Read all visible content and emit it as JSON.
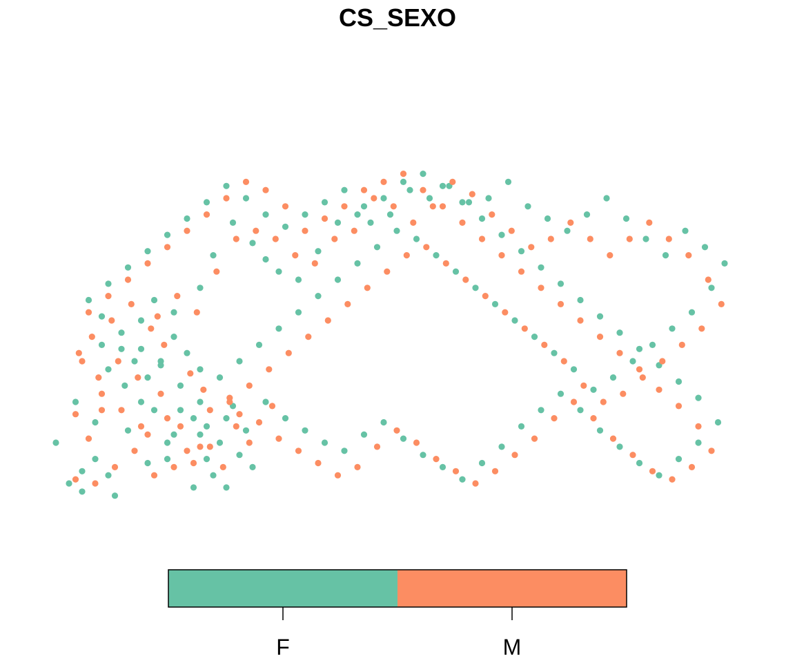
{
  "chart_data": {
    "type": "scatter",
    "title": "CS_SEXO",
    "xlabel": "",
    "ylabel": "",
    "grid": false,
    "legend": {
      "placement": "bottom",
      "style": "colorbar"
    },
    "categories": [
      "F",
      "M"
    ],
    "colors": {
      "F": "#66c2a5",
      "M": "#fc8d62"
    },
    "xlim": [
      0,
      1
    ],
    "ylim": [
      0,
      1
    ],
    "series": [
      {
        "name": "F",
        "points": [
          [
            0.0,
            0.0
          ],
          [
            0.02,
            0.03
          ],
          [
            0.06,
            0.02
          ],
          [
            0.09,
            0.13
          ],
          [
            0.12,
            0.05
          ],
          [
            0.085,
            0.24
          ],
          [
            0.07,
            -0.03
          ],
          [
            0.11,
            0.2
          ],
          [
            0.15,
            0.1
          ],
          [
            0.13,
            0.18
          ],
          [
            0.04,
            0.15
          ],
          [
            -0.02,
            0.1
          ],
          [
            0.02,
            -0.02
          ],
          [
            0.16,
            0.12
          ],
          [
            0.2,
            0.12
          ],
          [
            0.21,
            0.06
          ],
          [
            0.22,
            0.02
          ],
          [
            0.19,
            -0.01
          ],
          [
            0.23,
            0.1
          ],
          [
            0.24,
            0.16
          ],
          [
            0.26,
            0.07
          ],
          [
            0.27,
            0.13
          ],
          [
            0.25,
            0.19
          ],
          [
            0.28,
            0.04
          ],
          [
            0.24,
            -0.01
          ],
          [
            0.2,
            0.2
          ],
          [
            0.19,
            0.16
          ],
          [
            0.15,
            0.06
          ],
          [
            0.12,
            0.26
          ],
          [
            0.1,
            0.3
          ],
          [
            0.08,
            0.33
          ],
          [
            0.06,
            0.28
          ],
          [
            0.05,
            0.34
          ],
          [
            0.04,
            0.06
          ],
          [
            0.01,
            0.2
          ],
          [
            0.11,
            0.4
          ],
          [
            0.13,
            0.45
          ],
          [
            0.16,
            0.42
          ],
          [
            0.2,
            0.48
          ],
          [
            0.22,
            0.56
          ],
          [
            0.25,
            0.64
          ],
          [
            0.28,
            0.59
          ],
          [
            0.3,
            0.55
          ],
          [
            0.32,
            0.52
          ],
          [
            0.35,
            0.5
          ],
          [
            0.38,
            0.57
          ],
          [
            0.41,
            0.64
          ],
          [
            0.44,
            0.66
          ],
          [
            0.46,
            0.64
          ],
          [
            0.49,
            0.66
          ],
          [
            0.52,
            0.72
          ],
          [
            0.55,
            0.7
          ],
          [
            0.58,
            0.73
          ],
          [
            0.61,
            0.69
          ],
          [
            0.64,
            0.7
          ],
          [
            0.67,
            0.74
          ],
          [
            0.7,
            0.68
          ],
          [
            0.73,
            0.65
          ],
          [
            0.76,
            0.62
          ],
          [
            0.79,
            0.66
          ],
          [
            0.82,
            0.7
          ],
          [
            0.85,
            0.65
          ],
          [
            0.88,
            0.6
          ],
          [
            0.91,
            0.56
          ],
          [
            0.94,
            0.62
          ],
          [
            0.97,
            0.58
          ],
          [
            1.0,
            0.54
          ],
          [
            0.98,
            0.48
          ],
          [
            0.95,
            0.42
          ],
          [
            0.92,
            0.38
          ],
          [
            0.89,
            0.34
          ],
          [
            0.86,
            0.3
          ],
          [
            0.83,
            0.26
          ],
          [
            0.8,
            0.23
          ],
          [
            0.77,
            0.28
          ],
          [
            0.74,
            0.32
          ],
          [
            0.71,
            0.36
          ],
          [
            0.68,
            0.4
          ],
          [
            0.65,
            0.44
          ],
          [
            0.62,
            0.48
          ],
          [
            0.59,
            0.52
          ],
          [
            0.56,
            0.56
          ],
          [
            0.53,
            0.6
          ],
          [
            0.5,
            0.62
          ],
          [
            0.47,
            0.58
          ],
          [
            0.44,
            0.54
          ],
          [
            0.41,
            0.5
          ],
          [
            0.38,
            0.46
          ],
          [
            0.35,
            0.42
          ],
          [
            0.32,
            0.38
          ],
          [
            0.29,
            0.34
          ],
          [
            0.26,
            0.3
          ],
          [
            0.23,
            0.26
          ],
          [
            0.2,
            0.28
          ],
          [
            0.18,
            0.32
          ],
          [
            0.16,
            0.36
          ],
          [
            0.14,
            0.3
          ],
          [
            0.17,
            0.24
          ],
          [
            0.3,
            0.2
          ],
          [
            0.33,
            0.16
          ],
          [
            0.36,
            0.13
          ],
          [
            0.39,
            0.1
          ],
          [
            0.42,
            0.08
          ],
          [
            0.45,
            0.12
          ],
          [
            0.48,
            0.15
          ],
          [
            0.51,
            0.11
          ],
          [
            0.54,
            0.07
          ],
          [
            0.57,
            0.04
          ],
          [
            0.6,
            0.01
          ],
          [
            0.63,
            0.05
          ],
          [
            0.66,
            0.09
          ],
          [
            0.69,
            0.14
          ],
          [
            0.72,
            0.18
          ],
          [
            0.75,
            0.22
          ],
          [
            0.78,
            0.18
          ],
          [
            0.81,
            0.13
          ],
          [
            0.84,
            0.09
          ],
          [
            0.87,
            0.05
          ],
          [
            0.9,
            0.02
          ],
          [
            0.93,
            0.06
          ],
          [
            0.96,
            0.1
          ],
          [
            0.99,
            0.15
          ],
          [
            0.96,
            0.21
          ],
          [
            0.93,
            0.25
          ],
          [
            0.9,
            0.29
          ],
          [
            0.87,
            0.33
          ],
          [
            0.84,
            0.37
          ],
          [
            0.81,
            0.41
          ],
          [
            0.78,
            0.45
          ],
          [
            0.75,
            0.49
          ],
          [
            0.72,
            0.53
          ],
          [
            0.69,
            0.57
          ],
          [
            0.66,
            0.61
          ],
          [
            0.63,
            0.65
          ],
          [
            0.6,
            0.69
          ],
          [
            0.57,
            0.73
          ],
          [
            0.54,
            0.76
          ],
          [
            0.51,
            0.74
          ],
          [
            0.48,
            0.7
          ],
          [
            0.45,
            0.68
          ],
          [
            0.42,
            0.72
          ],
          [
            0.39,
            0.69
          ],
          [
            0.36,
            0.66
          ],
          [
            0.33,
            0.63
          ],
          [
            0.3,
            0.66
          ],
          [
            0.27,
            0.7
          ],
          [
            0.24,
            0.73
          ],
          [
            0.21,
            0.69
          ],
          [
            0.18,
            0.65
          ],
          [
            0.15,
            0.61
          ],
          [
            0.12,
            0.57
          ],
          [
            0.09,
            0.53
          ],
          [
            0.06,
            0.49
          ],
          [
            0.03,
            0.45
          ],
          [
            0.05,
            0.41
          ],
          [
            0.08,
            0.37
          ],
          [
            0.11,
            0.33
          ],
          [
            0.14,
            0.29
          ],
          [
            0.17,
            0.18
          ],
          [
            0.21,
            0.14
          ]
        ]
      },
      {
        "name": "M",
        "points": [
          [
            0.01,
            0.01
          ],
          [
            0.04,
            0.0
          ],
          [
            0.07,
            0.04
          ],
          [
            0.1,
            0.08
          ],
          [
            0.13,
            0.02
          ],
          [
            0.16,
            0.04
          ],
          [
            0.18,
            0.08
          ],
          [
            0.03,
            0.11
          ],
          [
            0.01,
            0.17
          ],
          [
            0.05,
            0.22
          ],
          [
            0.08,
            0.18
          ],
          [
            0.11,
            0.14
          ],
          [
            0.14,
            0.22
          ],
          [
            0.17,
            0.14
          ],
          [
            0.19,
            0.05
          ],
          [
            0.215,
            0.09
          ],
          [
            0.235,
            0.04
          ],
          [
            0.255,
            0.14
          ],
          [
            0.275,
            0.1
          ],
          [
            0.245,
            0.21
          ],
          [
            0.205,
            0.23
          ],
          [
            0.185,
            0.27
          ],
          [
            0.145,
            0.34
          ],
          [
            0.125,
            0.38
          ],
          [
            0.095,
            0.44
          ],
          [
            0.065,
            0.4
          ],
          [
            0.035,
            0.36
          ],
          [
            0.015,
            0.32
          ],
          [
            0.045,
            0.26
          ],
          [
            0.075,
            0.3
          ],
          [
            0.105,
            0.26
          ],
          [
            0.135,
            0.41
          ],
          [
            0.165,
            0.46
          ],
          [
            0.195,
            0.42
          ],
          [
            0.225,
            0.52
          ],
          [
            0.255,
            0.6
          ],
          [
            0.285,
            0.62
          ],
          [
            0.315,
            0.6
          ],
          [
            0.345,
            0.56
          ],
          [
            0.375,
            0.54
          ],
          [
            0.405,
            0.6
          ],
          [
            0.435,
            0.62
          ],
          [
            0.465,
            0.7
          ],
          [
            0.495,
            0.68
          ],
          [
            0.525,
            0.64
          ],
          [
            0.555,
            0.68
          ],
          [
            0.585,
            0.74
          ],
          [
            0.615,
            0.71
          ],
          [
            0.645,
            0.66
          ],
          [
            0.675,
            0.62
          ],
          [
            0.705,
            0.58
          ],
          [
            0.735,
            0.6
          ],
          [
            0.765,
            0.64
          ],
          [
            0.795,
            0.6
          ],
          [
            0.825,
            0.56
          ],
          [
            0.855,
            0.6
          ],
          [
            0.885,
            0.64
          ],
          [
            0.915,
            0.6
          ],
          [
            0.945,
            0.56
          ],
          [
            0.975,
            0.5
          ],
          [
            0.995,
            0.44
          ],
          [
            0.965,
            0.38
          ],
          [
            0.935,
            0.34
          ],
          [
            0.905,
            0.3
          ],
          [
            0.875,
            0.26
          ],
          [
            0.845,
            0.22
          ],
          [
            0.815,
            0.2
          ],
          [
            0.785,
            0.24
          ],
          [
            0.755,
            0.3
          ],
          [
            0.725,
            0.34
          ],
          [
            0.695,
            0.38
          ],
          [
            0.665,
            0.42
          ],
          [
            0.635,
            0.46
          ],
          [
            0.605,
            0.5
          ],
          [
            0.575,
            0.54
          ],
          [
            0.545,
            0.58
          ],
          [
            0.515,
            0.56
          ],
          [
            0.485,
            0.52
          ],
          [
            0.455,
            0.48
          ],
          [
            0.425,
            0.44
          ],
          [
            0.395,
            0.4
          ],
          [
            0.365,
            0.36
          ],
          [
            0.335,
            0.32
          ],
          [
            0.305,
            0.28
          ],
          [
            0.275,
            0.24
          ],
          [
            0.245,
            0.2
          ],
          [
            0.215,
            0.18
          ],
          [
            0.29,
            0.15
          ],
          [
            0.32,
            0.11
          ],
          [
            0.35,
            0.08
          ],
          [
            0.38,
            0.05
          ],
          [
            0.41,
            0.02
          ],
          [
            0.44,
            0.04
          ],
          [
            0.47,
            0.09
          ],
          [
            0.5,
            0.13
          ],
          [
            0.53,
            0.1
          ],
          [
            0.56,
            0.06
          ],
          [
            0.59,
            0.03
          ],
          [
            0.62,
            0.0
          ],
          [
            0.65,
            0.03
          ],
          [
            0.68,
            0.07
          ],
          [
            0.71,
            0.11
          ],
          [
            0.74,
            0.16
          ],
          [
            0.77,
            0.2
          ],
          [
            0.8,
            0.16
          ],
          [
            0.83,
            0.11
          ],
          [
            0.86,
            0.07
          ],
          [
            0.89,
            0.03
          ],
          [
            0.92,
            0.01
          ],
          [
            0.95,
            0.04
          ],
          [
            0.98,
            0.08
          ],
          [
            0.96,
            0.14
          ],
          [
            0.93,
            0.19
          ],
          [
            0.9,
            0.23
          ],
          [
            0.87,
            0.28
          ],
          [
            0.84,
            0.32
          ],
          [
            0.81,
            0.36
          ],
          [
            0.78,
            0.4
          ],
          [
            0.75,
            0.44
          ],
          [
            0.72,
            0.48
          ],
          [
            0.69,
            0.52
          ],
          [
            0.66,
            0.56
          ],
          [
            0.63,
            0.6
          ],
          [
            0.6,
            0.64
          ],
          [
            0.57,
            0.68
          ],
          [
            0.54,
            0.72
          ],
          [
            0.51,
            0.76
          ],
          [
            0.48,
            0.74
          ],
          [
            0.45,
            0.72
          ],
          [
            0.42,
            0.68
          ],
          [
            0.39,
            0.65
          ],
          [
            0.36,
            0.62
          ],
          [
            0.33,
            0.68
          ],
          [
            0.3,
            0.72
          ],
          [
            0.27,
            0.74
          ],
          [
            0.24,
            0.7
          ],
          [
            0.21,
            0.66
          ],
          [
            0.18,
            0.62
          ],
          [
            0.15,
            0.58
          ],
          [
            0.12,
            0.54
          ],
          [
            0.09,
            0.5
          ],
          [
            0.06,
            0.46
          ],
          [
            0.03,
            0.42
          ],
          [
            0.02,
            0.3
          ],
          [
            0.05,
            0.18
          ],
          [
            0.12,
            0.12
          ],
          [
            0.2,
            0.09
          ],
          [
            0.26,
            0.17
          ],
          [
            0.31,
            0.19
          ],
          [
            0.15,
            0.16
          ]
        ]
      }
    ]
  }
}
